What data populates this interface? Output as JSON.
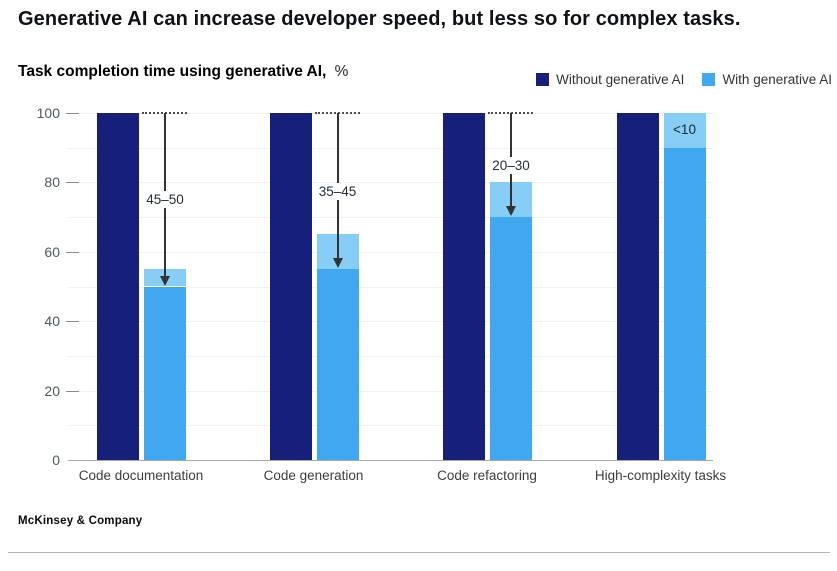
{
  "title": "Generative AI can increase developer speed, but less so for complex tasks.",
  "subtitle": {
    "label": "Task completion time using generative AI,",
    "unit": "%"
  },
  "legend": [
    {
      "label": "Without generative AI",
      "color": "#161F7A"
    },
    {
      "label": "With generative AI",
      "color": "#3FA8F1"
    }
  ],
  "chart_data": {
    "type": "bar",
    "categories": [
      "Code documentation",
      "Code generation",
      "Code refactoring",
      "High-complexity tasks"
    ],
    "series": [
      {
        "name": "Without generative AI",
        "color": "#161F7A",
        "values": [
          100,
          100,
          100,
          100
        ]
      },
      {
        "name": "With generative AI",
        "color": "#3FA8F1",
        "range_color": "#87CEF6",
        "values_low": [
          50,
          55,
          70,
          90
        ],
        "values_high": [
          55,
          65,
          80,
          100
        ]
      }
    ],
    "annotations": [
      {
        "category": "Code documentation",
        "label": "45–50",
        "type": "arrow",
        "arrow_from": 100,
        "arrow_to": 50
      },
      {
        "category": "Code generation",
        "label": "35–45",
        "type": "arrow",
        "arrow_from": 100,
        "arrow_to": 55
      },
      {
        "category": "Code refactoring",
        "label": "20–30",
        "type": "arrow",
        "arrow_from": 100,
        "arrow_to": 70
      },
      {
        "category": "High-complexity tasks",
        "label": "<10",
        "type": "inline",
        "label_at": 95
      }
    ],
    "title": "Task completion time using generative AI, %",
    "xlabel": "",
    "ylabel": "",
    "ylim": [
      0,
      100
    ],
    "yticks": [
      0,
      20,
      40,
      60,
      80,
      100
    ],
    "grid_step": 10,
    "grid": true,
    "legend_position": "top-right"
  },
  "footer": {
    "source": "McKinsey & Company"
  }
}
